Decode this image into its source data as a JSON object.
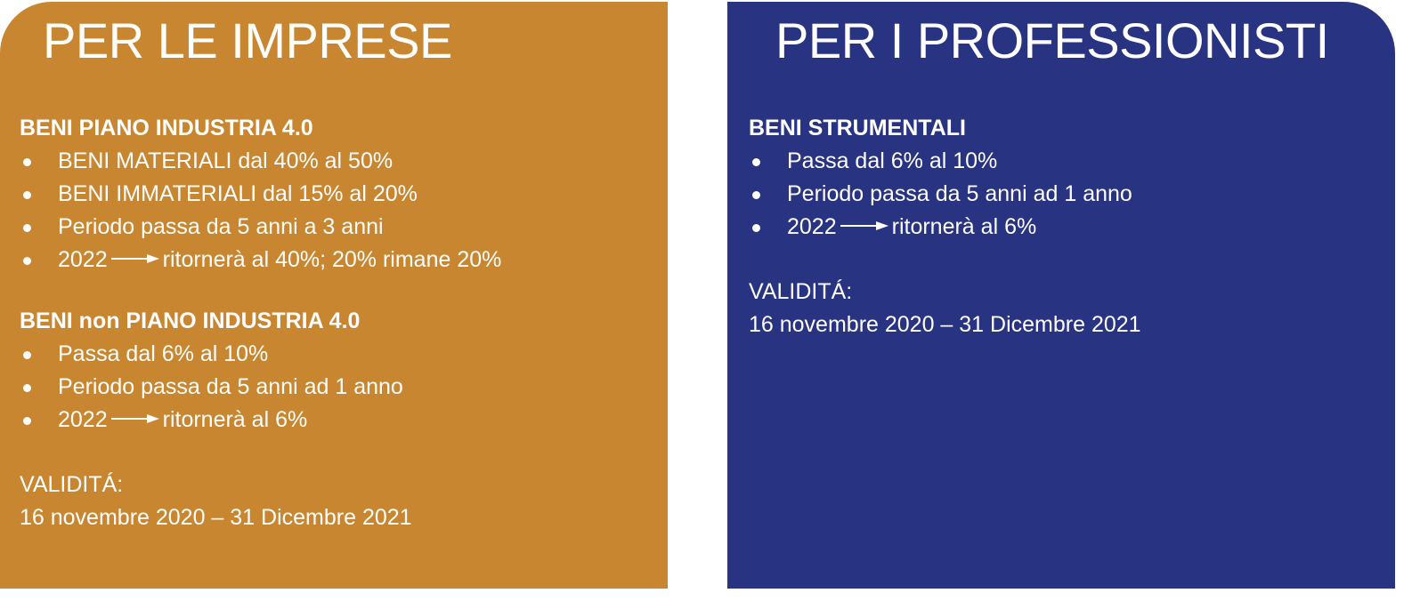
{
  "colors": {
    "imprese": "#C98630",
    "professionisti": "#283382"
  },
  "imprese": {
    "title": "PER LE IMPRESE",
    "sections": [
      {
        "heading": "BENI PIANO INDUSTRIA 4.0",
        "items": [
          {
            "text": "BENI MATERIALI dal 40% al 50%"
          },
          {
            "text": "BENI IMMATERIALI dal 15% al 20%"
          },
          {
            "text": "Periodo passa da 5 anni a 3 anni"
          },
          {
            "year": "2022",
            "icon": "arrow-right-icon",
            "text": "ritornerà al 40%; 20% rimane 20%"
          }
        ]
      },
      {
        "heading": "BENI non PIANO INDUSTRIA 4.0",
        "items": [
          {
            "text": "Passa dal 6% al 10%"
          },
          {
            "text": "Periodo passa da 5 anni ad 1 anno"
          },
          {
            "year": "2022",
            "icon": "arrow-right-icon",
            "text": "ritornerà al 6%"
          }
        ]
      }
    ],
    "validity_label": "VALIDITÁ:",
    "validity_dates": "16 novembre 2020 – 31 Dicembre 2021"
  },
  "professionisti": {
    "title": "PER I PROFESSIONISTI",
    "sections": [
      {
        "heading": "BENI STRUMENTALI",
        "items": [
          {
            "text": "Passa dal 6% al 10%"
          },
          {
            "text": "Periodo passa da 5 anni ad 1 anno"
          },
          {
            "year": "2022",
            "icon": "arrow-right-icon",
            "text": "ritornerà al 6%"
          }
        ]
      }
    ],
    "validity_label": "VALIDITÁ:",
    "validity_dates": "16 novembre 2020 – 31 Dicembre 2021"
  }
}
